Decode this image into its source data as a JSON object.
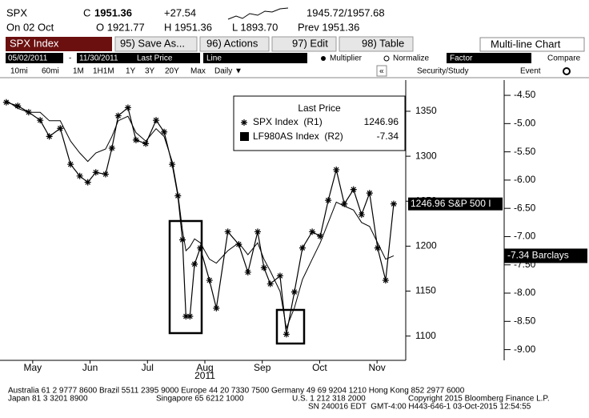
{
  "header": {
    "ticker": "SPX",
    "close_label": "C",
    "close": "1951.36",
    "change": "+27.54",
    "range": "1945.72/1957.68",
    "date": "On 02 Oct",
    "open": "O 1921.77",
    "high": "H 1951.36",
    "low": "L 1893.70",
    "prev": "Prev 1951.36"
  },
  "toolbar": {
    "security": "SPX Index",
    "buttons": [
      "95) Save As...",
      "96) Actions",
      "97) Edit",
      "98) Table"
    ],
    "chart_type": "Multi-line Chart"
  },
  "settings": {
    "start": "05/02/2011",
    "separator": "-",
    "end": "11/30/2011",
    "field": "Last Price",
    "style": "Line",
    "options": [
      "Multiplier",
      "Normalize"
    ],
    "factor": "Factor",
    "compare": "Compare"
  },
  "periods": [
    "10mi",
    "60mi",
    "1M",
    "1H1M",
    "1Y",
    "3Y",
    "20Y",
    "Max",
    "Daily ▼"
  ],
  "nav": [
    "«",
    "Security/Study",
    "Event"
  ],
  "chart_data": {
    "type": "line",
    "legend_title": "Last Price",
    "x_axis_label": "2011",
    "xlim": [
      0,
      7
    ],
    "xticks": [
      {
        "value": 0.5,
        "label": "May"
      },
      {
        "value": 1.5,
        "label": "Jun"
      },
      {
        "value": 2.5,
        "label": "Jul"
      },
      {
        "value": 3.5,
        "label": "Aug"
      },
      {
        "value": 4.5,
        "label": "Sep"
      },
      {
        "value": 5.5,
        "label": "Oct"
      },
      {
        "value": 6.5,
        "label": "Nov"
      }
    ],
    "ylim": [
      1073,
      1374
    ],
    "yticks": [
      1100,
      1150,
      1200,
      1250,
      1300,
      1350
    ],
    "y2lim": [
      -9.19,
      -4.4
    ],
    "y2ticks": [
      {
        "value": -4.5,
        "label": "-4.50"
      },
      {
        "value": -5,
        "label": "-5.00"
      },
      {
        "value": -5.5,
        "label": "-5.50"
      },
      {
        "value": -6,
        "label": "-6.00"
      },
      {
        "value": -6.5,
        "label": "-6.50"
      },
      {
        "value": -7,
        "label": "-7.00"
      },
      {
        "value": -7.5,
        "label": "-7.50"
      },
      {
        "value": -8,
        "label": "-8.00"
      },
      {
        "value": -8.5,
        "label": "-8.50"
      },
      {
        "value": -9,
        "label": "-9.00"
      }
    ],
    "x": [
      0.04,
      0.24,
      0.43,
      0.63,
      0.79,
      0.98,
      1.16,
      1.32,
      1.46,
      1.6,
      1.77,
      1.88,
      1.99,
      2.16,
      2.3,
      2.47,
      2.65,
      2.79,
      2.93,
      3.03,
      3.11,
      3.17,
      3.24,
      3.32,
      3.42,
      3.58,
      3.7,
      3.9,
      4.09,
      4.25,
      4.42,
      4.53,
      4.64,
      4.81,
      4.92,
      5.06,
      5.2,
      5.37,
      5.51,
      5.65,
      5.79,
      5.93,
      6.09,
      6.23,
      6.37,
      6.51,
      6.65,
      6.79
    ],
    "series": [
      {
        "name": "SPX Index  (R1)",
        "color": "#000000",
        "marker": "star",
        "last": "1246.96",
        "tag": "1246.96 S&P 500 I",
        "values": [
          1360,
          1356,
          1349,
          1340,
          1322,
          1331,
          1291,
          1278,
          1271,
          1282,
          1280,
          1309,
          1345,
          1354,
          1318,
          1314,
          1340,
          1327,
          1291,
          1256,
          1207,
          1122,
          1122,
          1180,
          1198,
          1162,
          1131,
          1216,
          1202,
          1171,
          1216,
          1176,
          1158,
          1167,
          1102,
          1149,
          1198,
          1216,
          1211,
          1251,
          1285,
          1247,
          1263,
          1235,
          1259,
          1198,
          1162,
          1246.96
        ]
      },
      {
        "name": "LF980AS Index  (R2)",
        "color": "#000000",
        "axis": "y2",
        "last": "-7.34",
        "tag": "-7.34 Barclays",
        "values": [
          -4.59,
          -4.73,
          -4.8,
          -4.8,
          -4.95,
          -4.95,
          -5.31,
          -5.52,
          -5.67,
          -5.52,
          -5.45,
          -5.23,
          -4.95,
          -4.87,
          -5.16,
          -5.31,
          -5.09,
          -5.23,
          -5.67,
          -6.24,
          -6.89,
          -7.25,
          -7.18,
          -7.04,
          -7.11,
          -7.4,
          -7.47,
          -7.25,
          -7.11,
          -7.32,
          -7.11,
          -7.4,
          -7.61,
          -7.97,
          -8.62,
          -8.26,
          -7.76,
          -7.4,
          -7.11,
          -6.75,
          -6.39,
          -6.46,
          -6.53,
          -6.75,
          -6.82,
          -7.11,
          -7.4,
          -7.34
        ]
      }
    ]
  },
  "footer": {
    "line1": "Australia 61 2 9777 8600 Brazil 5511 2395 9000 Europe 44 20 7330 7500 Germany 49 69 9204 1210 Hong Kong 852 2977 6000",
    "line2": [
      "Japan 81 3 3201 8900",
      "Singapore 65 6212 1000",
      "U.S. 1 212 318 2000",
      "Copyright 2015 Bloomberg Finance L.P."
    ],
    "line3": "SN 240016 EDT  GMT-4:00 H443-646-1 03-Oct-2015 12:54:55"
  }
}
